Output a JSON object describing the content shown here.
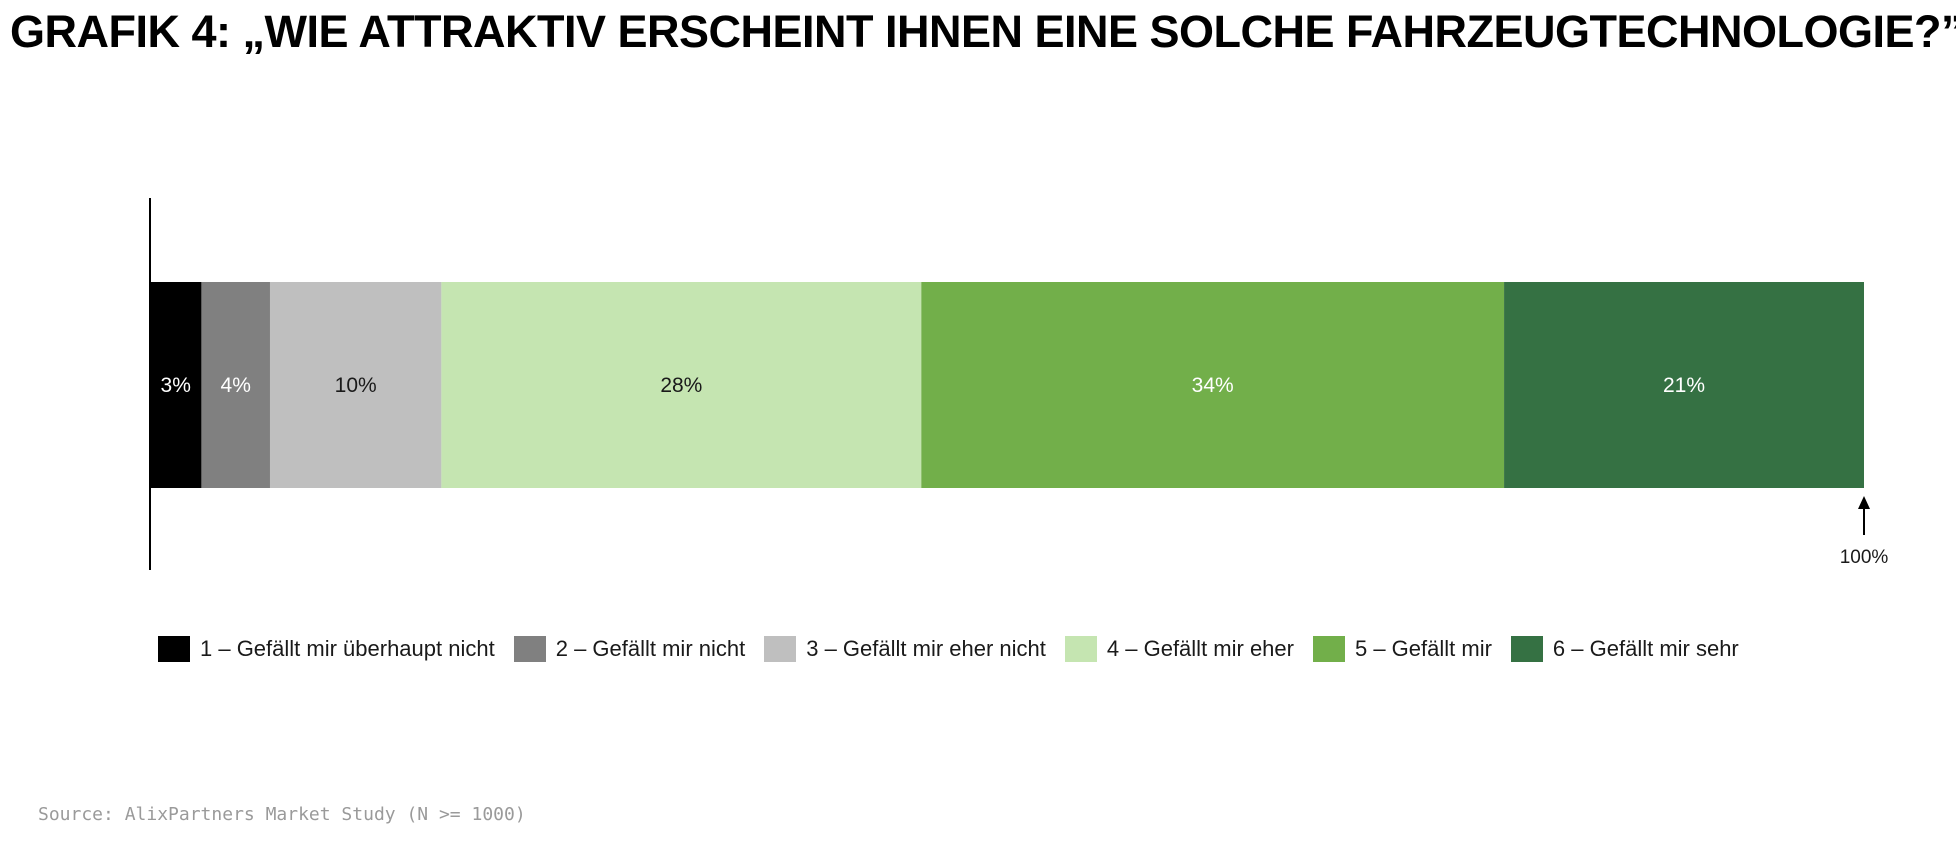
{
  "title": "GRAFIK 4: „WIE ATTRAKTIV ERSCHEINT IHNEN EINE SOLCHE FAHRZEUGTECHNOLOGIE?”",
  "source": "Source: AlixPartners Market Study (N >= 1000)",
  "chart_data": {
    "type": "bar",
    "orientation": "horizontal-stacked",
    "title": "GRAFIK 4: „WIE ATTRAKTIV ERSCHEINT IHNEN EINE SOLCHE FAHRZEUGTECHNOLOGIE?”",
    "total_label": "100%",
    "xlim": [
      0,
      100
    ],
    "grid": false,
    "legend_position": "bottom",
    "series": [
      {
        "name": "1 – Gefällt mir überhaupt nicht",
        "value": 3,
        "label": "3%",
        "color": "#000000",
        "text_color": "#ffffff"
      },
      {
        "name": "2 – Gefällt mir nicht",
        "value": 4,
        "label": "4%",
        "color": "#808080",
        "text_color": "#ffffff"
      },
      {
        "name": "3 – Gefällt mir eher nicht",
        "value": 10,
        "label": "10%",
        "color": "#bfbfbf",
        "text_color": "#1a1a1a"
      },
      {
        "name": "4 – Gefällt mir eher",
        "value": 28,
        "label": "28%",
        "color": "#c5e5b1",
        "text_color": "#1a1a1a"
      },
      {
        "name": "5 – Gefällt mir",
        "value": 34,
        "label": "34%",
        "color": "#72af4a",
        "text_color": "#ffffff"
      },
      {
        "name": "6 – Gefällt mir sehr",
        "value": 21,
        "label": "21%",
        "color": "#357143",
        "text_color": "#ffffff"
      }
    ]
  }
}
